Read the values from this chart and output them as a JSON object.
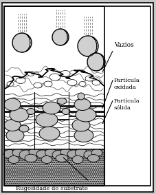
{
  "label_vazios": "Vazios",
  "label_particula_oxidada": "Partícula\noxidada",
  "label_particula_solida": "Partícula\nsólida",
  "label_rugosidade": "Rugosidade do substrato",
  "fig_bg": "#c8c8c8",
  "white": "#ffffff",
  "black": "#000000",
  "gray_light": "#d4d4d4",
  "gray_mid": "#aaaaaa",
  "gray_dark": "#444444",
  "gray_substrate": "#c0c0c0",
  "figsize": [
    2.28,
    2.82
  ],
  "dpi": 100,
  "xlim": [
    0,
    228
  ],
  "ylim": [
    0,
    282
  ]
}
